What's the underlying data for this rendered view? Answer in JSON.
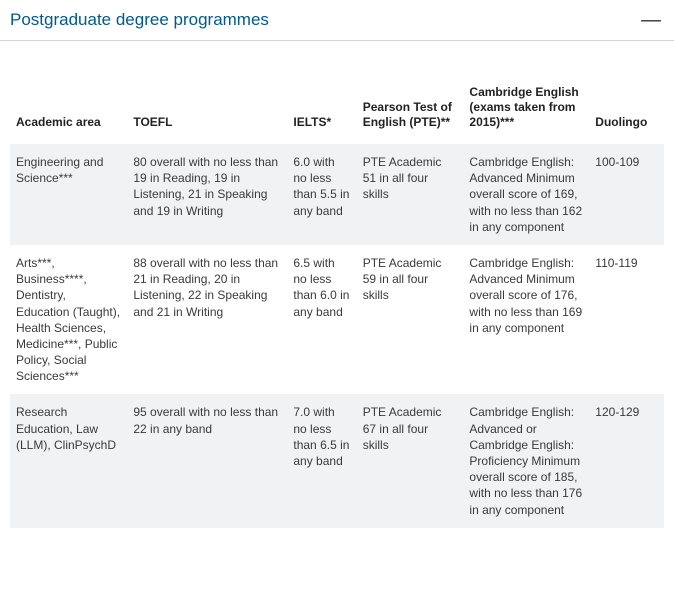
{
  "header": {
    "title": "Postgraduate degree programmes",
    "collapse_icon": "—"
  },
  "table": {
    "columns": [
      {
        "label": "Academic area"
      },
      {
        "label": "TOEFL"
      },
      {
        "label": "IELTS*"
      },
      {
        "label": "Pearson Test of English (PTE)**"
      },
      {
        "label": "Cambridge English (exams taken from 2015)***"
      },
      {
        "label": "Duolingo"
      }
    ],
    "rows": [
      {
        "area": "Engineering and Science***",
        "toefl": "80 overall with no less than 19 in Reading, 19 in Listening, 21 in Speaking and 19 in Writing",
        "ielts": "6.0 with no less than 5.5 in any band",
        "pte": "PTE Academic 51 in all four skills",
        "cambridge": "Cambridge English: Advanced Minimum overall score of 169, with no less than 162 in any component",
        "duolingo": "100-109"
      },
      {
        "area": "Arts***, Business****, Dentistry, Education (Taught), Health Sciences, Medicine***, Public Policy, Social Sciences***",
        "toefl": "88 overall with no less than 21 in Reading, 20 in Listening, 22 in Speaking and 21 in Writing",
        "ielts": "6.5 with no less than 6.0 in any band",
        "pte": "PTE Academic 59 in all four skills",
        "cambridge": "Cambridge English: Advanced Minimum overall score of 176, with no less than 169 in any component",
        "duolingo": "110-119"
      },
      {
        "area": "Research Education, Law (LLM), ClinPsychD",
        "toefl": "95 overall with no less than 22 in any band",
        "ielts": "7.0 with no less than 6.5 in any band",
        "pte": "PTE Academic 67 in all four skills",
        "cambridge": "Cambridge English: Advanced or Cambridge English: Proficiency Minimum overall score of 185, with no less than 176 in any component",
        "duolingo": "120-129"
      }
    ]
  },
  "colors": {
    "header_text": "#005a8c",
    "header_border": "#cfd7de",
    "row_alt_bg": "#f0f2f4",
    "body_text": "#3a3a3a",
    "background": "#ffffff"
  }
}
